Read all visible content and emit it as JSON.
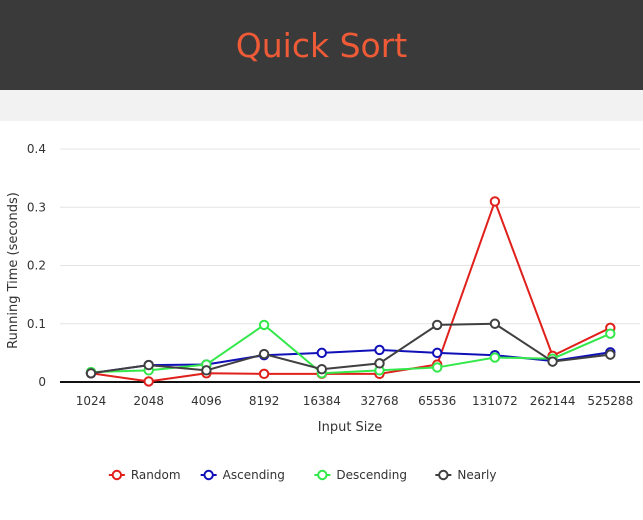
{
  "header": {
    "title": "Quick Sort"
  },
  "colors": {
    "header_bg": "#3a3a3a",
    "title": "#ef5a37",
    "band_bg": "#f2f2f2"
  },
  "chart_data": {
    "type": "line",
    "title": "",
    "xlabel": "Input Size",
    "ylabel": "Running Time (seconds)",
    "categories": [
      "1024",
      "2048",
      "4096",
      "8192",
      "16384",
      "32768",
      "65536",
      "131072",
      "262144",
      "525288"
    ],
    "yticks": [
      "0",
      "0.1",
      "0.2",
      "0.3",
      "0.4"
    ],
    "ylim": [
      0,
      0.4
    ],
    "grid": true,
    "legend_position": "bottom-center",
    "series": [
      {
        "name": "Random",
        "color": "#e0201b",
        "values": [
          0.015,
          0.001,
          0.015,
          0.014,
          0.014,
          0.014,
          0.03,
          0.31,
          0.045,
          0.093
        ]
      },
      {
        "name": "Ascending",
        "color": "#1010b8",
        "values": [
          0.015,
          0.029,
          0.03,
          0.046,
          0.05,
          0.055,
          0.05,
          0.046,
          0.036,
          0.051
        ]
      },
      {
        "name": "Descending",
        "color": "#33e84a",
        "values": [
          0.017,
          0.02,
          0.03,
          0.098,
          0.015,
          0.02,
          0.025,
          0.042,
          0.04,
          0.083
        ]
      },
      {
        "name": "Nearly",
        "color": "#404040",
        "values": [
          0.015,
          0.029,
          0.02,
          0.048,
          0.022,
          0.032,
          0.098,
          0.1,
          0.035,
          0.047
        ]
      }
    ]
  }
}
